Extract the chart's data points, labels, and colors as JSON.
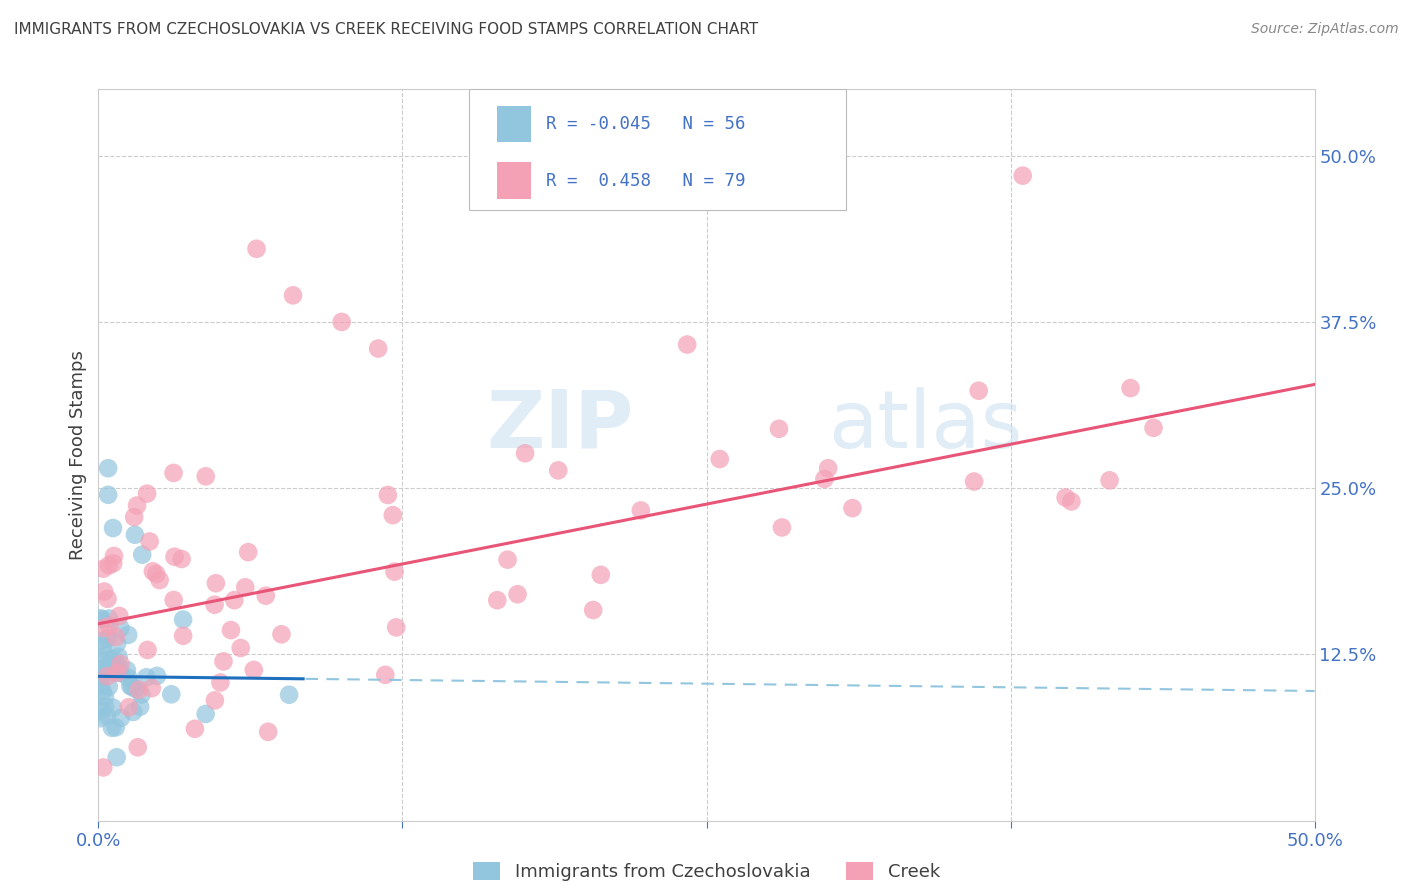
{
  "title": "IMMIGRANTS FROM CZECHOSLOVAKIA VS CREEK RECEIVING FOOD STAMPS CORRELATION CHART",
  "source": "Source: ZipAtlas.com",
  "ylabel": "Receiving Food Stamps",
  "legend_blue_r": "-0.045",
  "legend_blue_n": "56",
  "legend_pink_r": "0.458",
  "legend_pink_n": "79",
  "legend_label_blue": "Immigrants from Czechoslovakia",
  "legend_label_pink": "Creek",
  "blue_color": "#92C5DE",
  "pink_color": "#F4A0B5",
  "blue_line_solid_color": "#1F6FBF",
  "pink_line_color": "#E85577",
  "blue_line_dash_color": "#92C5DE",
  "axis_tick_color": "#4472C4",
  "background_color": "#FFFFFF",
  "grid_color": "#CCCCCC",
  "title_color": "#404040",
  "source_color": "#888888",
  "watermark_zip_color": "#C8DFF0",
  "watermark_atlas_color": "#C8DFF0",
  "xlim": [
    0.0,
    0.5
  ],
  "ylim": [
    0.0,
    0.55
  ],
  "xtick_positions": [
    0.0,
    0.125,
    0.25,
    0.375,
    0.5
  ],
  "xtick_labels": [
    "0.0%",
    "",
    "",
    "",
    "50.0%"
  ],
  "ytick_positions": [
    0.0,
    0.125,
    0.25,
    0.375,
    0.5
  ],
  "ytick_labels": [
    "",
    "12.5%",
    "25.0%",
    "37.5%",
    "50.0%"
  ],
  "blue_line_x_solid_end": 0.085,
  "blue_line_intercept": 0.1085,
  "blue_line_slope": -0.022,
  "pink_line_intercept": 0.148,
  "pink_line_slope": 0.36
}
